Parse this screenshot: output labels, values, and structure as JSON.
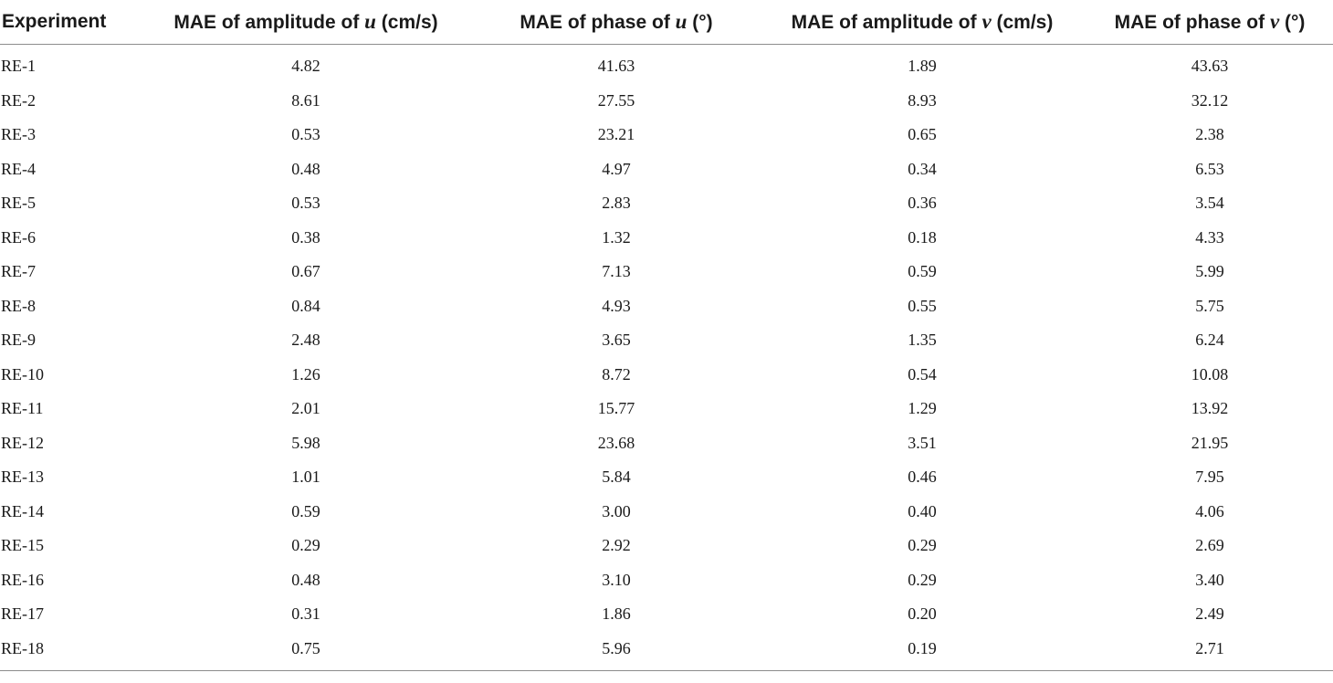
{
  "table": {
    "headers": [
      {
        "prefix": "Experiment",
        "var": "",
        "suffix": ""
      },
      {
        "prefix": "MAE of amplitude of ",
        "var": "u",
        "suffix": " (cm/s)"
      },
      {
        "prefix": "MAE of phase of ",
        "var": "u",
        "suffix": " (°)"
      },
      {
        "prefix": "MAE of amplitude of ",
        "var": "v",
        "suffix": " (cm/s)"
      },
      {
        "prefix": "MAE of phase of ",
        "var": "v",
        "suffix": " (°)"
      }
    ],
    "rows": [
      [
        "RE-1",
        "4.82",
        "41.63",
        "1.89",
        "43.63"
      ],
      [
        "RE-2",
        "8.61",
        "27.55",
        "8.93",
        "32.12"
      ],
      [
        "RE-3",
        "0.53",
        "23.21",
        "0.65",
        "2.38"
      ],
      [
        "RE-4",
        "0.48",
        "4.97",
        "0.34",
        "6.53"
      ],
      [
        "RE-5",
        "0.53",
        "2.83",
        "0.36",
        "3.54"
      ],
      [
        "RE-6",
        "0.38",
        "1.32",
        "0.18",
        "4.33"
      ],
      [
        "RE-7",
        "0.67",
        "7.13",
        "0.59",
        "5.99"
      ],
      [
        "RE-8",
        "0.84",
        "4.93",
        "0.55",
        "5.75"
      ],
      [
        "RE-9",
        "2.48",
        "3.65",
        "1.35",
        "6.24"
      ],
      [
        "RE-10",
        "1.26",
        "8.72",
        "0.54",
        "10.08"
      ],
      [
        "RE-11",
        "2.01",
        "15.77",
        "1.29",
        "13.92"
      ],
      [
        "RE-12",
        "5.98",
        "23.68",
        "3.51",
        "21.95"
      ],
      [
        "RE-13",
        "1.01",
        "5.84",
        "0.46",
        "7.95"
      ],
      [
        "RE-14",
        "0.59",
        "3.00",
        "0.40",
        "4.06"
      ],
      [
        "RE-15",
        "0.29",
        "2.92",
        "0.29",
        "2.69"
      ],
      [
        "RE-16",
        "0.48",
        "3.10",
        "0.29",
        "3.40"
      ],
      [
        "RE-17",
        "0.31",
        "1.86",
        "0.20",
        "2.49"
      ],
      [
        "RE-18",
        "0.75",
        "5.96",
        "0.19",
        "2.71"
      ]
    ]
  }
}
